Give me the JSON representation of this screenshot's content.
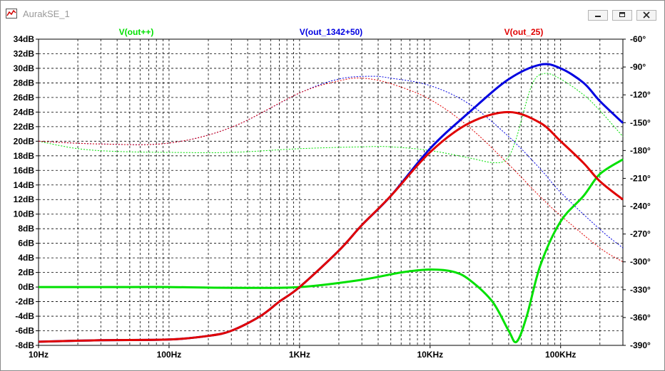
{
  "window": {
    "title": "AurakSE_1"
  },
  "chart_data": {
    "type": "line",
    "xscale": "log",
    "xlim": [
      10,
      300000
    ],
    "ylim_left": [
      -8,
      34
    ],
    "ylim_right": [
      -390,
      -60
    ],
    "ylabel_left": "",
    "ylabel_right": "",
    "grid": true,
    "x_ticks": [
      {
        "value": 10,
        "label": "10Hz"
      },
      {
        "value": 100,
        "label": "100Hz"
      },
      {
        "value": 1000,
        "label": "1KHz"
      },
      {
        "value": 10000,
        "label": "10KHz"
      },
      {
        "value": 100000,
        "label": "100KHz"
      }
    ],
    "y_ticks_left": [
      {
        "value": 34,
        "label": "34dB"
      },
      {
        "value": 32,
        "label": "32dB"
      },
      {
        "value": 30,
        "label": "30dB"
      },
      {
        "value": 28,
        "label": "28dB"
      },
      {
        "value": 26,
        "label": "26dB"
      },
      {
        "value": 24,
        "label": "24dB"
      },
      {
        "value": 22,
        "label": "22dB"
      },
      {
        "value": 20,
        "label": "20dB"
      },
      {
        "value": 18,
        "label": "18dB"
      },
      {
        "value": 16,
        "label": "16dB"
      },
      {
        "value": 14,
        "label": "14dB"
      },
      {
        "value": 12,
        "label": "12dB"
      },
      {
        "value": 10,
        "label": "10dB"
      },
      {
        "value": 8,
        "label": "8dB"
      },
      {
        "value": 6,
        "label": "6dB"
      },
      {
        "value": 4,
        "label": "4dB"
      },
      {
        "value": 2,
        "label": "2dB"
      },
      {
        "value": 0,
        "label": "0dB"
      },
      {
        "value": -2,
        "label": "-2dB"
      },
      {
        "value": -4,
        "label": "-4dB"
      },
      {
        "value": -6,
        "label": "-6dB"
      },
      {
        "value": -8,
        "label": "-8dB"
      }
    ],
    "y_ticks_right": [
      {
        "value": -60,
        "label": "-60°"
      },
      {
        "value": -90,
        "label": "-90°"
      },
      {
        "value": -120,
        "label": "-120°"
      },
      {
        "value": -150,
        "label": "-150°"
      },
      {
        "value": -180,
        "label": "-180°"
      },
      {
        "value": -210,
        "label": "-210°"
      },
      {
        "value": -240,
        "label": "-240°"
      },
      {
        "value": -270,
        "label": "-270°"
      },
      {
        "value": -300,
        "label": "-300°"
      },
      {
        "value": -330,
        "label": "-330°"
      },
      {
        "value": -360,
        "label": "-360°"
      },
      {
        "value": -390,
        "label": "-390°"
      }
    ],
    "series": [
      {
        "name": "V(out++)",
        "color": "#00e000",
        "magnitude_db": [
          [
            10,
            0
          ],
          [
            50,
            0
          ],
          [
            100,
            0
          ],
          [
            300,
            -0.1
          ],
          [
            1000,
            0
          ],
          [
            3000,
            1
          ],
          [
            6000,
            2
          ],
          [
            10000,
            2.4
          ],
          [
            15000,
            2.1
          ],
          [
            20000,
            1
          ],
          [
            30000,
            -2
          ],
          [
            40000,
            -6
          ],
          [
            46000,
            -7.5
          ],
          [
            55000,
            -4
          ],
          [
            70000,
            3
          ],
          [
            100000,
            9
          ],
          [
            150000,
            12.5
          ],
          [
            200000,
            15.5
          ],
          [
            300000,
            17.5
          ]
        ],
        "phase_deg": [
          [
            10,
            -170
          ],
          [
            20,
            -178
          ],
          [
            40,
            -181
          ],
          [
            100,
            -182
          ],
          [
            300,
            -182
          ],
          [
            1000,
            -178
          ],
          [
            3000,
            -176
          ],
          [
            5000,
            -176
          ],
          [
            10000,
            -180
          ],
          [
            20000,
            -188
          ],
          [
            30000,
            -193
          ],
          [
            38000,
            -190
          ],
          [
            45000,
            -170
          ],
          [
            60000,
            -110
          ],
          [
            75000,
            -97
          ],
          [
            100000,
            -103
          ],
          [
            150000,
            -120
          ],
          [
            200000,
            -137
          ],
          [
            300000,
            -165
          ]
        ]
      },
      {
        "name": "V(out_1342+50)",
        "color": "#0000e0",
        "magnitude_db": [
          [
            10,
            -7.5
          ],
          [
            30,
            -7.3
          ],
          [
            100,
            -7.2
          ],
          [
            200,
            -6.7
          ],
          [
            300,
            -6
          ],
          [
            500,
            -4
          ],
          [
            700,
            -2
          ],
          [
            1000,
            0
          ],
          [
            2000,
            5
          ],
          [
            3000,
            8.5
          ],
          [
            5000,
            12.5
          ],
          [
            10000,
            19
          ],
          [
            20000,
            24
          ],
          [
            40000,
            28.5
          ],
          [
            70000,
            30.5
          ],
          [
            100000,
            30
          ],
          [
            150000,
            28
          ],
          [
            200000,
            25.5
          ],
          [
            300000,
            22.5
          ]
        ],
        "phase_deg": [
          [
            10,
            -170
          ],
          [
            30,
            -173
          ],
          [
            100,
            -172
          ],
          [
            300,
            -155
          ],
          [
            1000,
            -118
          ],
          [
            2000,
            -103
          ],
          [
            3500,
            -100
          ],
          [
            5000,
            -102
          ],
          [
            10000,
            -110
          ],
          [
            20000,
            -130
          ],
          [
            40000,
            -165
          ],
          [
            70000,
            -200
          ],
          [
            100000,
            -225
          ],
          [
            200000,
            -265
          ],
          [
            300000,
            -285
          ]
        ]
      },
      {
        "name": "V(out_25)",
        "color": "#e00000",
        "magnitude_db": [
          [
            10,
            -7.5
          ],
          [
            30,
            -7.3
          ],
          [
            100,
            -7.2
          ],
          [
            200,
            -6.7
          ],
          [
            300,
            -6
          ],
          [
            500,
            -4
          ],
          [
            700,
            -2
          ],
          [
            1000,
            0
          ],
          [
            2000,
            5
          ],
          [
            3000,
            8.5
          ],
          [
            5000,
            12.5
          ],
          [
            10000,
            18.5
          ],
          [
            20000,
            22.5
          ],
          [
            40000,
            24
          ],
          [
            70000,
            22.5
          ],
          [
            100000,
            20
          ],
          [
            150000,
            17
          ],
          [
            200000,
            14.5
          ],
          [
            300000,
            12
          ]
        ],
        "phase_deg": [
          [
            10,
            -170
          ],
          [
            30,
            -173
          ],
          [
            100,
            -172
          ],
          [
            300,
            -155
          ],
          [
            1000,
            -118
          ],
          [
            2000,
            -105
          ],
          [
            3000,
            -102
          ],
          [
            5000,
            -108
          ],
          [
            10000,
            -125
          ],
          [
            20000,
            -155
          ],
          [
            40000,
            -195
          ],
          [
            70000,
            -230
          ],
          [
            100000,
            -250
          ],
          [
            200000,
            -285
          ],
          [
            300000,
            -300
          ]
        ]
      }
    ]
  }
}
